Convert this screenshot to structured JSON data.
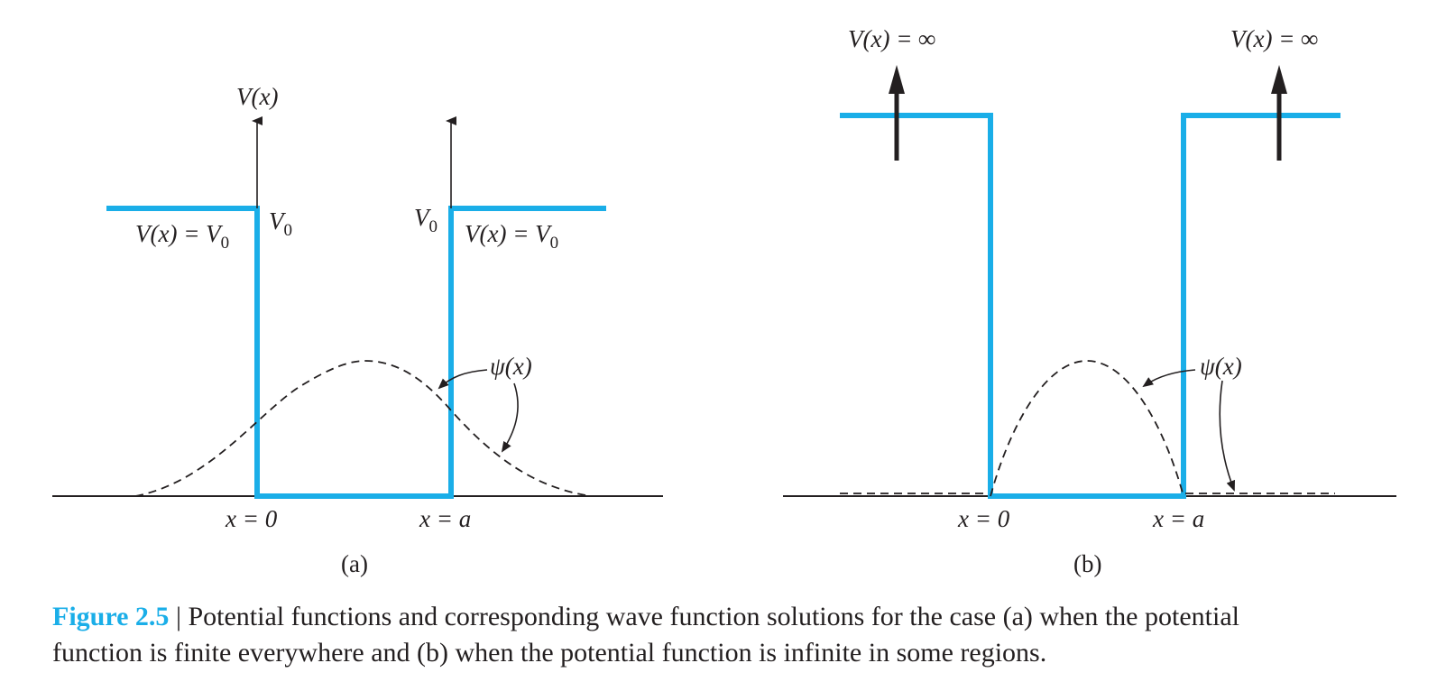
{
  "panel_a": {
    "vx_axis": "V(x)",
    "v0_left": "V",
    "v0_left_sub": "0",
    "v0_right": "V",
    "v0_right_sub": "0",
    "vx_eq_left": "V(x) = V",
    "vx_eq_left_sub": "0",
    "vx_eq_right": "V(x) = V",
    "vx_eq_right_sub": "0",
    "psi": "ψ(x)",
    "x0": "x = 0",
    "xa": "x = a",
    "label": "(a)"
  },
  "panel_b": {
    "vx_inf_left": "V(x) = ∞",
    "vx_inf_right": "V(x) = ∞",
    "psi": "ψ(x)",
    "x0": "x = 0",
    "xa": "x = a",
    "label": "(b)"
  },
  "caption": {
    "figure_number": "Figure 2.5",
    "separator": "|",
    "text_line1": "Potential functions and corresponding wave function solutions for the case (a) when the potential",
    "text_line2": "function is finite everywhere and (b) when the potential function is infinite in some regions."
  },
  "colors": {
    "well": "#1aaee8",
    "ink": "#231f20",
    "figure_number": "#1aaee8"
  }
}
